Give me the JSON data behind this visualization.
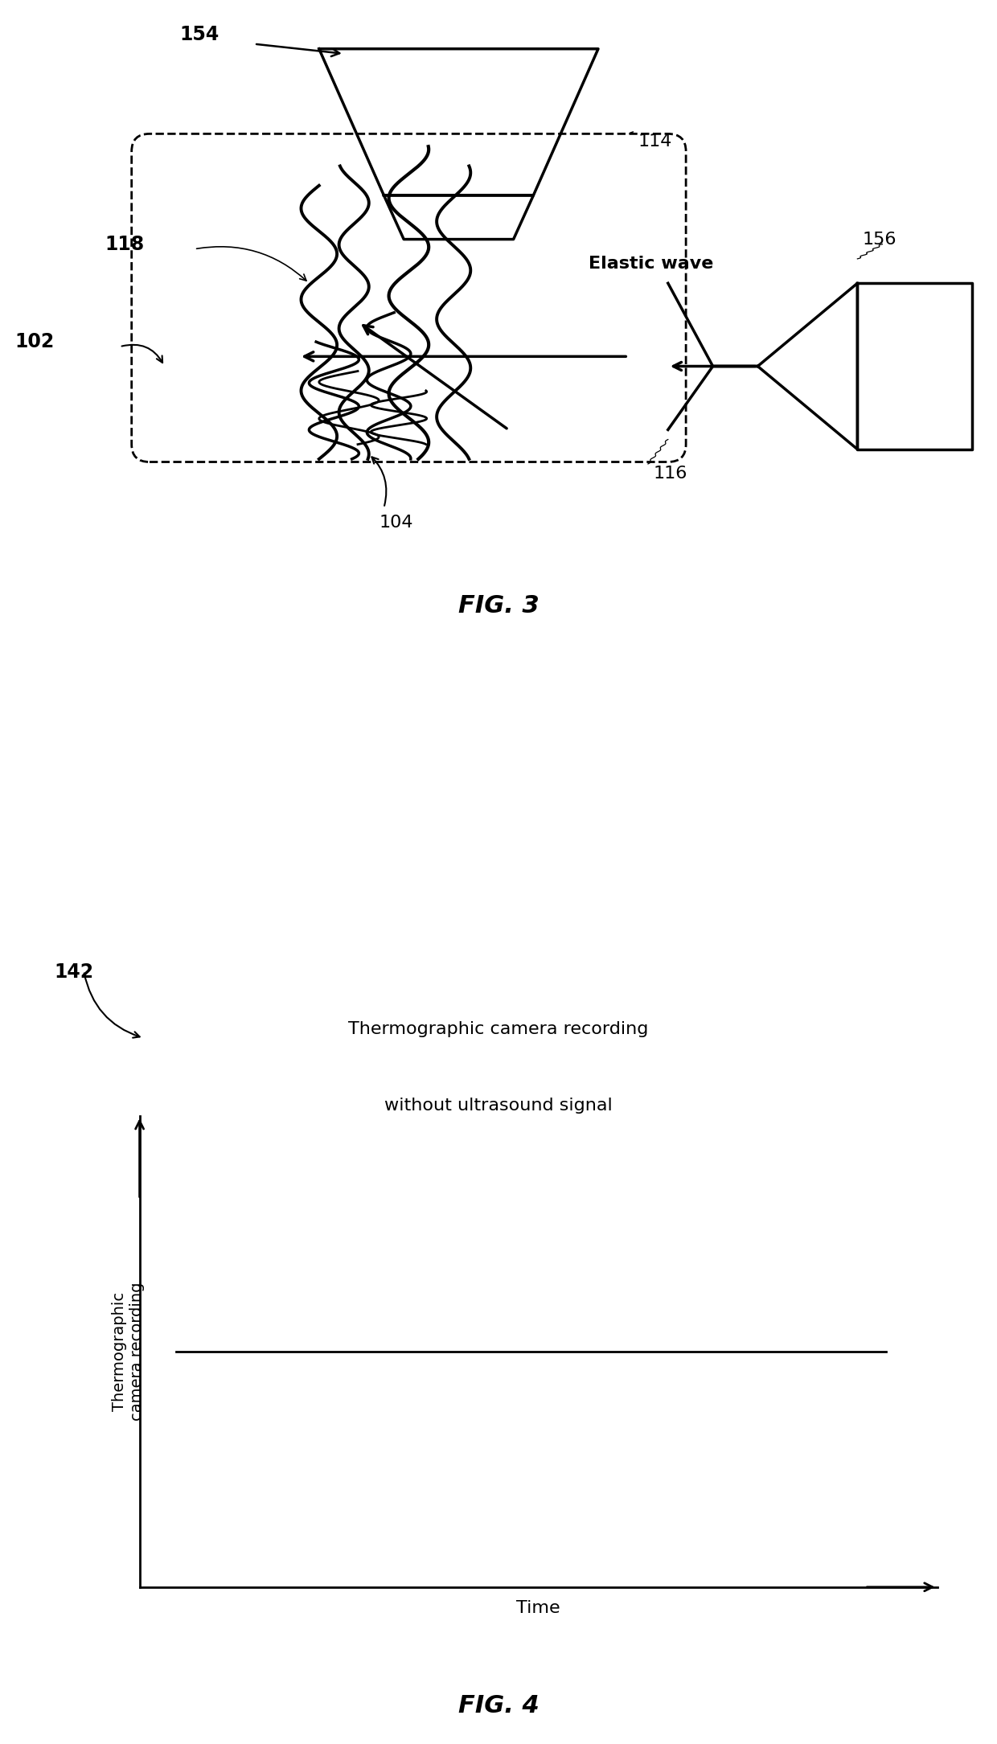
{
  "fig3_label": "FIG. 3",
  "fig4_label": "FIG. 4",
  "label_154": "154",
  "label_114": "114",
  "label_118": "118",
  "label_102": "102",
  "label_104": "104",
  "label_116": "116",
  "label_156": "156",
  "label_elastic": "Elastic wave",
  "label_142": "142",
  "label_thermo_line1": "Thermographic camera recording",
  "label_thermo_line2": "without ultrasound signal",
  "label_xlabel": "Time",
  "label_ylabel": "Thermographic\ncamera recording",
  "bg_color": "#ffffff",
  "line_color": "#000000",
  "fontsize_label": 15,
  "fontsize_fig": 22,
  "fontsize_axis": 14,
  "fontsize_elastic": 16
}
